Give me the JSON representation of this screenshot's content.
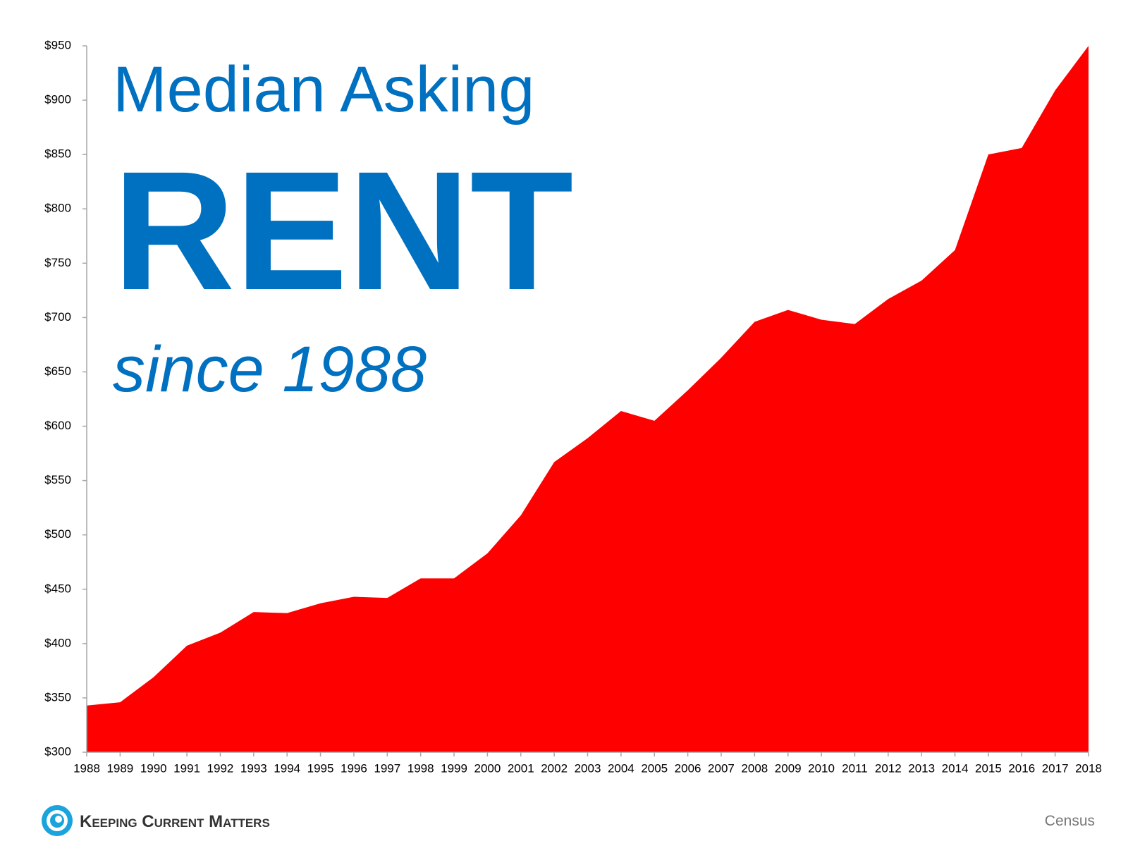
{
  "chart_data": {
    "type": "area",
    "title": "Median Asking",
    "title_emphasis": "RENT",
    "subtitle": "since 1988",
    "x": [
      1988,
      1989,
      1990,
      1991,
      1992,
      1993,
      1994,
      1995,
      1996,
      1997,
      1998,
      1999,
      2000,
      2001,
      2002,
      2003,
      2004,
      2005,
      2006,
      2007,
      2008,
      2009,
      2010,
      2011,
      2012,
      2013,
      2014,
      2015,
      2016,
      2017,
      2018
    ],
    "values": [
      343,
      346,
      369,
      398,
      410,
      429,
      428,
      437,
      443,
      442,
      460,
      460,
      483,
      518,
      567,
      589,
      614,
      605,
      633,
      663,
      696,
      707,
      698,
      694,
      717,
      734,
      762,
      850,
      856,
      909,
      950
    ],
    "color": "#ff0000",
    "xlim": [
      1988,
      2018
    ],
    "ylim": [
      300,
      950
    ],
    "yticks": [
      {
        "value": 300,
        "label": "$300"
      },
      {
        "value": 350,
        "label": "$350"
      },
      {
        "value": 400,
        "label": "$400"
      },
      {
        "value": 450,
        "label": "$450"
      },
      {
        "value": 500,
        "label": "$500"
      },
      {
        "value": 550,
        "label": "$550"
      },
      {
        "value": 600,
        "label": "$600"
      },
      {
        "value": 650,
        "label": "$650"
      },
      {
        "value": 700,
        "label": "$700"
      },
      {
        "value": 750,
        "label": "$750"
      },
      {
        "value": 800,
        "label": "$800"
      },
      {
        "value": 850,
        "label": "$850"
      },
      {
        "value": 900,
        "label": "$900"
      },
      {
        "value": 950,
        "label": "$950"
      }
    ],
    "grid": false,
    "source": "Census"
  },
  "footer": {
    "logo_text": "Keeping Current Matters"
  }
}
